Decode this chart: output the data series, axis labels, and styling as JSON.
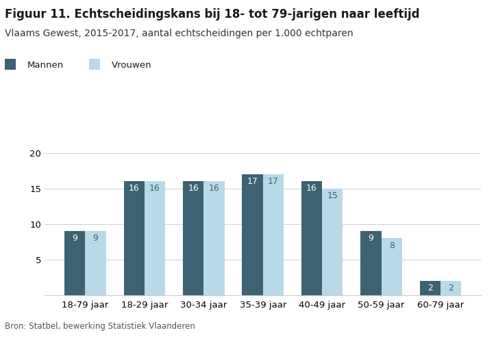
{
  "title": "Figuur 11. Echtscheidingskans bij 18- tot 79-jarigen naar leeftijd",
  "subtitle": "Vlaams Gewest, 2015-2017, aantal echtscheidingen per 1.000 echtparen",
  "categories": [
    "18-79 jaar",
    "18-29 jaar",
    "30-34 jaar",
    "35-39 jaar",
    "40-49 jaar",
    "50-59 jaar",
    "60-79 jaar"
  ],
  "mannen": [
    9,
    16,
    16,
    17,
    16,
    9,
    2
  ],
  "vrouwen": [
    9,
    16,
    16,
    17,
    15,
    8,
    2
  ],
  "color_mannen": "#3d6272",
  "color_vrouwen": "#b8d9e8",
  "legend_mannen": "Mannen",
  "legend_vrouwen": "Vrouwen",
  "ylim": [
    0,
    21
  ],
  "yticks": [
    5,
    10,
    15,
    20
  ],
  "footnote": "Bron: Statbel, bewerking Statistiek Vlaanderen",
  "bar_width": 0.35,
  "background_color": "#ffffff",
  "title_fontsize": 12,
  "subtitle_fontsize": 10,
  "tick_fontsize": 9.5,
  "label_fontsize": 9,
  "legend_fontsize": 9.5,
  "footnote_fontsize": 8.5
}
